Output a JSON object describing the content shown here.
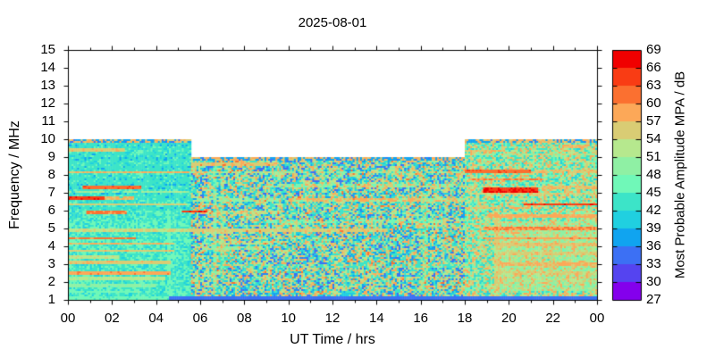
{
  "title": "2025-08-01",
  "chart_data": {
    "type": "heatmap",
    "title": "2025-08-01",
    "xlabel": "UT Time / hrs",
    "ylabel": "Frequency / MHz",
    "x_range_hours": [
      0,
      24
    ],
    "x_tick_labels": [
      "00",
      "02",
      "04",
      "06",
      "08",
      "10",
      "12",
      "14",
      "16",
      "18",
      "20",
      "22",
      "00"
    ],
    "x_tick_hours": [
      0,
      2,
      4,
      6,
      8,
      10,
      12,
      14,
      16,
      18,
      20,
      22,
      24
    ],
    "y_range_mhz": [
      1,
      15
    ],
    "y_tick_labels": [
      "15",
      "14",
      "13",
      "12",
      "11",
      "10",
      "9",
      "8",
      "7",
      "6",
      "5",
      "4",
      "3",
      "2",
      "1"
    ],
    "y_tick_values": [
      15,
      14,
      13,
      12,
      11,
      10,
      9,
      8,
      7,
      6,
      5,
      4,
      3,
      2,
      1
    ],
    "grid": false,
    "colorbar": {
      "label": "Most Probable Amplitude MPA / dB",
      "min": 27,
      "max": 69,
      "step": 3,
      "tick_labels_top_to_bottom": [
        "69",
        "66",
        "63",
        "60",
        "57",
        "54",
        "51",
        "48",
        "45",
        "42",
        "39",
        "36",
        "33",
        "30",
        "27"
      ],
      "colors_low_to_high": [
        "#8400EC",
        "#5544F0",
        "#3C70F4",
        "#10A4F0",
        "#20D0E0",
        "#3CE4C8",
        "#70F8B8",
        "#8FF0A4",
        "#B6E88E",
        "#D9CC74",
        "#FCA858",
        "#FB7030",
        "#F93C14",
        "#F00000"
      ]
    },
    "coverage": [
      {
        "t_start": 0,
        "t_end": 5.55,
        "f_min": 1,
        "f_max": 10
      },
      {
        "t_start": 5.55,
        "t_end": 18,
        "f_min": 1,
        "f_max": 9
      },
      {
        "t_start": 18,
        "t_end": 24,
        "f_min": 1,
        "f_max": 10
      }
    ],
    "resolution": {
      "time_bins": 288,
      "freq_step_mhz": 0.1
    },
    "background_levels_db": {
      "night_base": 42.2,
      "day_base": 39.8,
      "evening_base": 43.0,
      "evening_speckle_base": 45.5,
      "top_cap": 37.0,
      "bottom_band": 34.2,
      "bottom_band_start_hr": 4.6,
      "bottom_band_f_max": 1.18
    },
    "band_format": [
      "freq_mhz",
      "t_start_hr",
      "t_end_hr",
      "amplitude_db",
      "density",
      "width_mhz_optional"
    ],
    "interference_bands": [
      [
        9.4,
        0,
        2.6,
        57,
        0.5
      ],
      [
        8.15,
        0,
        5.5,
        58,
        0.6
      ],
      [
        8.15,
        5.5,
        18,
        50,
        0.25
      ],
      [
        7.3,
        0.7,
        3.3,
        63,
        0.5
      ],
      [
        7.05,
        0,
        5.5,
        52,
        0.35
      ],
      [
        6.7,
        0,
        1.7,
        66,
        0.85
      ],
      [
        6.7,
        1.7,
        3.0,
        58,
        0.4
      ],
      [
        6.35,
        0,
        5.4,
        56,
        0.6
      ],
      [
        5.9,
        0.8,
        2.7,
        62,
        0.45
      ],
      [
        5.95,
        5.2,
        6.3,
        66,
        0.85
      ],
      [
        4.9,
        0,
        5.5,
        55,
        0.55
      ],
      [
        4.45,
        0,
        3.1,
        62,
        0.8,
        0.15
      ],
      [
        4.15,
        0,
        4.8,
        58,
        0.7
      ],
      [
        3.75,
        0,
        4.8,
        57,
        0.55
      ],
      [
        3.4,
        0,
        2.3,
        54,
        0.5
      ],
      [
        3.1,
        0,
        4.7,
        57,
        0.7
      ],
      [
        2.5,
        0,
        4.7,
        60,
        0.75,
        0.15
      ],
      [
        2.2,
        0,
        4.4,
        53,
        0.5
      ],
      [
        1.8,
        0,
        4.0,
        50,
        0.45
      ],
      [
        1.45,
        0,
        3.5,
        48,
        0.4
      ],
      [
        8.6,
        5.6,
        9.5,
        57,
        0.5
      ],
      [
        6.6,
        5.8,
        18,
        50,
        0.35
      ],
      [
        6.6,
        10,
        16,
        58,
        0.08
      ],
      [
        5.9,
        6.0,
        9.0,
        54,
        0.3
      ],
      [
        4.9,
        5.5,
        14.5,
        56,
        0.5
      ],
      [
        4.2,
        6.5,
        10,
        52,
        0.3
      ],
      [
        3.9,
        6.0,
        8.5,
        50,
        0.35
      ],
      [
        7.4,
        9,
        17.5,
        48,
        0.35
      ],
      [
        5.4,
        9,
        17,
        47,
        0.3
      ],
      [
        2.9,
        6,
        18,
        45,
        0.25
      ],
      [
        9.35,
        18,
        19.8,
        58,
        0.6
      ],
      [
        9.6,
        22.4,
        23.5,
        58,
        0.55
      ],
      [
        9.15,
        18,
        24,
        50,
        0.3
      ],
      [
        8.2,
        18,
        21,
        63,
        0.6
      ],
      [
        8.2,
        21,
        24,
        57,
        0.4
      ],
      [
        7.75,
        18.2,
        21.5,
        61,
        0.5
      ],
      [
        7.15,
        18.8,
        21.3,
        67,
        0.8,
        0.2
      ],
      [
        7.3,
        21.5,
        24,
        57,
        0.4
      ],
      [
        6.95,
        18.2,
        24,
        55,
        0.4
      ],
      [
        6.35,
        20.7,
        24,
        66,
        0.85,
        0.15
      ],
      [
        6.15,
        18.5,
        21,
        58,
        0.4
      ],
      [
        5.7,
        19,
        24,
        59,
        0.5
      ],
      [
        5.0,
        18.8,
        24,
        61,
        0.65
      ],
      [
        4.45,
        18.8,
        24,
        60,
        0.6
      ],
      [
        4.1,
        19.3,
        24,
        57,
        0.6
      ],
      [
        3.6,
        19.5,
        24,
        56,
        0.5
      ],
      [
        3.0,
        19.4,
        24,
        58,
        0.75
      ],
      [
        2.5,
        19.5,
        24,
        55,
        0.5
      ],
      [
        2.1,
        20,
        24,
        52,
        0.45
      ]
    ],
    "streak_format": [
      "t_start_hr",
      "t_end_hr",
      "f_min_mhz",
      "f_max_mhz",
      "amplitude_db",
      "density"
    ],
    "vertical_streaks": [
      [
        4.5,
        4.65,
        1.3,
        6,
        47,
        0.6
      ],
      [
        6.55,
        6.75,
        1.5,
        8.5,
        47,
        0.65
      ],
      [
        6.9,
        7.05,
        2,
        8,
        46,
        0.5
      ],
      [
        16.1,
        16.35,
        1.5,
        7,
        46,
        0.5
      ],
      [
        19.35,
        19.55,
        1.5,
        6,
        55,
        0.7
      ],
      [
        19.9,
        20.1,
        2,
        5,
        50,
        0.5
      ],
      [
        22.6,
        22.75,
        2,
        6,
        50,
        0.4
      ]
    ],
    "seed": 20250801
  }
}
